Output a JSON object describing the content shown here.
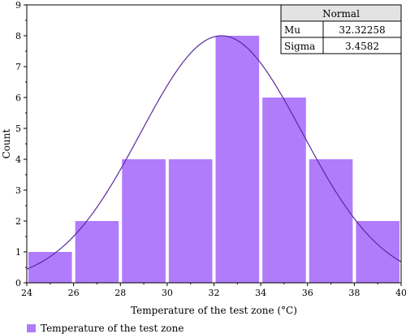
{
  "chart_data": {
    "type": "bar",
    "bins": [
      {
        "start": 24,
        "end": 26,
        "count": 1
      },
      {
        "start": 26,
        "end": 28,
        "count": 2
      },
      {
        "start": 28,
        "end": 30,
        "count": 4
      },
      {
        "start": 30,
        "end": 32,
        "count": 4
      },
      {
        "start": 32,
        "end": 34,
        "count": 8
      },
      {
        "start": 34,
        "end": 36,
        "count": 6
      },
      {
        "start": 36,
        "end": 38,
        "count": 4
      },
      {
        "start": 38,
        "end": 40,
        "count": 2
      }
    ],
    "xlabel": "Temperature of the test zone (°C)",
    "ylabel": "Count",
    "xlim": [
      24,
      40
    ],
    "ylim": [
      0,
      9
    ],
    "xticks": [
      24,
      26,
      28,
      30,
      32,
      34,
      36,
      38,
      40
    ],
    "yticks": [
      0,
      1,
      2,
      3,
      4,
      5,
      6,
      7,
      8,
      9
    ],
    "grid": false,
    "bar_color": "#b07cfc",
    "curve_color": "#5a2a9e",
    "fit": {
      "title": "Normal",
      "mu_label": "Mu",
      "mu": "32.32258",
      "sigma_label": "Sigma",
      "sigma": "3.4582",
      "peak_count": 8
    },
    "legend": {
      "position": "bottom-left",
      "entries": [
        "Temperature of the test zone"
      ]
    }
  }
}
